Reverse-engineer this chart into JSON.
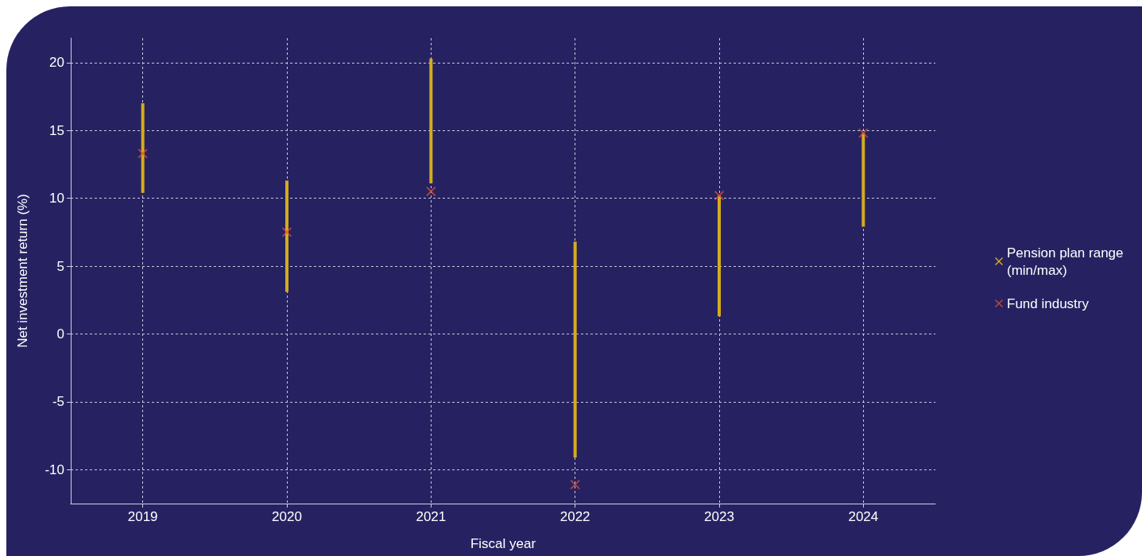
{
  "chart_data": {
    "type": "scatter",
    "xlabel": "Fiscal year",
    "ylabel": "Net investment return (%)",
    "categories": [
      "2019",
      "2020",
      "2021",
      "2022",
      "2023",
      "2024"
    ],
    "series": [
      {
        "name": "Pension plan range (min/max)",
        "type": "bar",
        "color": "#d4ac1c",
        "base": [
          10.4,
          3.1,
          11.1,
          -9.1,
          1.3,
          7.9
        ],
        "values": [
          6.6,
          8.2,
          9.2,
          15.9,
          8.9,
          6.9
        ]
      },
      {
        "name": "Fund industry",
        "color": "#e0532f",
        "values": [
          13.3,
          7.5,
          10.5,
          -11.1,
          10.2,
          14.8
        ]
      }
    ],
    "ylim": [
      -12.5,
      21.8
    ],
    "yticks": [
      -10,
      -5,
      0,
      5,
      10,
      15,
      20
    ],
    "grid": true,
    "legend": "right",
    "marker": "cross"
  }
}
